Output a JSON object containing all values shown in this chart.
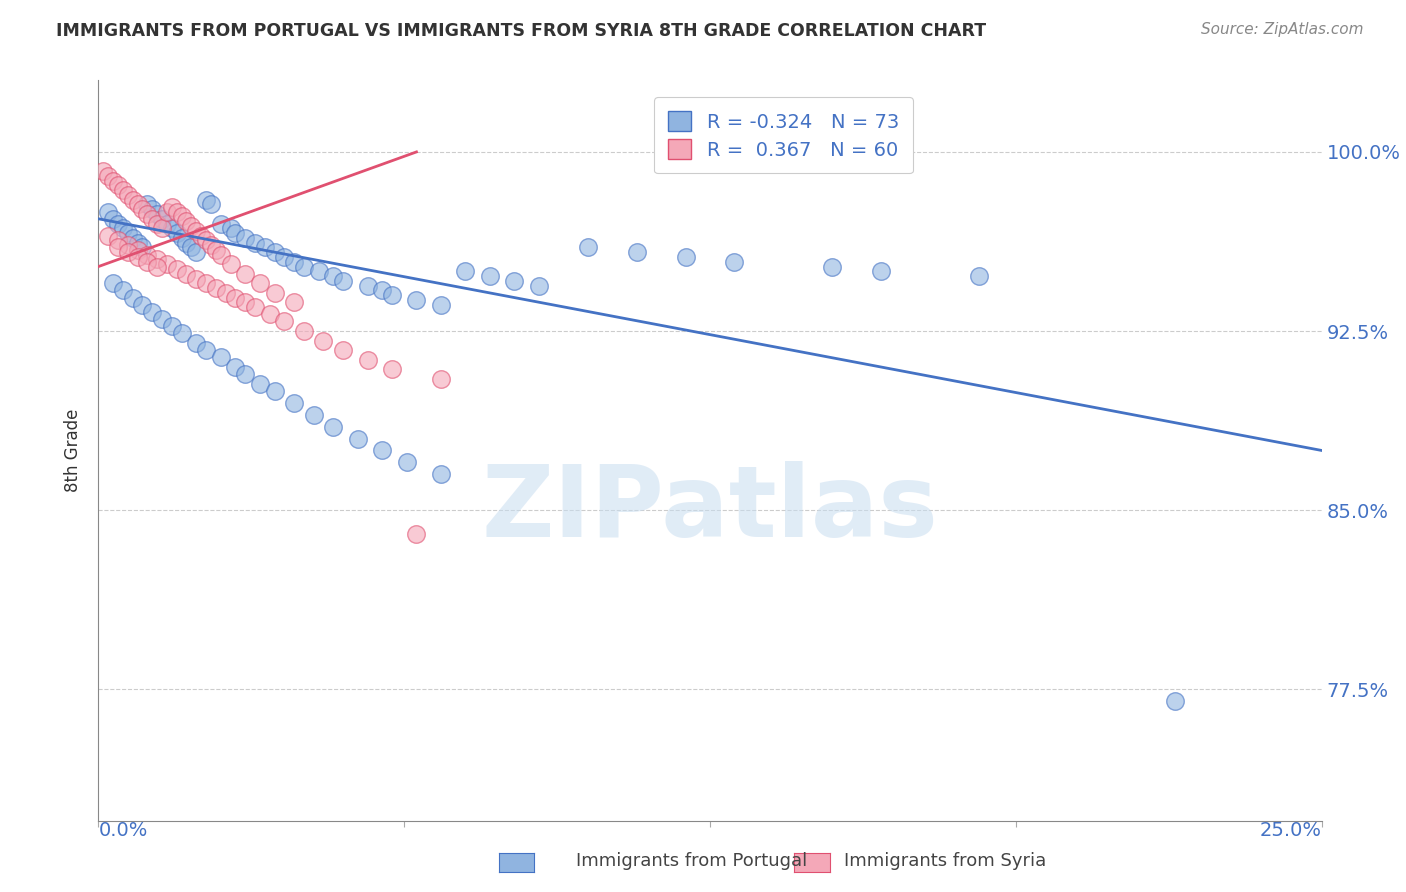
{
  "title": "IMMIGRANTS FROM PORTUGAL VS IMMIGRANTS FROM SYRIA 8TH GRADE CORRELATION CHART",
  "source": "Source: ZipAtlas.com",
  "ylabel": "8th Grade",
  "ytick_labels": [
    "100.0%",
    "92.5%",
    "85.0%",
    "77.5%"
  ],
  "ytick_values": [
    1.0,
    0.925,
    0.85,
    0.775
  ],
  "xlim": [
    0.0,
    0.25
  ],
  "ylim": [
    0.72,
    1.03
  ],
  "blue_color": "#90b4e0",
  "pink_color": "#f4a8b8",
  "blue_edge_color": "#4472c4",
  "pink_edge_color": "#e05070",
  "blue_line_color": "#4472c4",
  "pink_line_color": "#e05070",
  "legend_blue_label_r": "R = -0.324",
  "legend_blue_label_n": "N = 73",
  "legend_pink_label_r": "R =  0.367",
  "legend_pink_label_n": "N = 60",
  "watermark": "ZIPatlas",
  "blue_scatter_x": [
    0.002,
    0.003,
    0.004,
    0.005,
    0.006,
    0.007,
    0.008,
    0.009,
    0.01,
    0.011,
    0.012,
    0.013,
    0.014,
    0.015,
    0.016,
    0.017,
    0.018,
    0.019,
    0.02,
    0.022,
    0.023,
    0.025,
    0.027,
    0.028,
    0.03,
    0.032,
    0.034,
    0.036,
    0.038,
    0.04,
    0.042,
    0.045,
    0.048,
    0.05,
    0.055,
    0.058,
    0.06,
    0.065,
    0.07,
    0.075,
    0.08,
    0.085,
    0.09,
    0.1,
    0.11,
    0.12,
    0.13,
    0.15,
    0.16,
    0.18,
    0.003,
    0.005,
    0.007,
    0.009,
    0.011,
    0.013,
    0.015,
    0.017,
    0.02,
    0.022,
    0.025,
    0.028,
    0.03,
    0.033,
    0.036,
    0.04,
    0.044,
    0.048,
    0.053,
    0.058,
    0.063,
    0.07,
    0.22
  ],
  "blue_scatter_y": [
    0.975,
    0.972,
    0.97,
    0.968,
    0.966,
    0.964,
    0.962,
    0.96,
    0.978,
    0.976,
    0.974,
    0.972,
    0.97,
    0.968,
    0.966,
    0.964,
    0.962,
    0.96,
    0.958,
    0.98,
    0.978,
    0.97,
    0.968,
    0.966,
    0.964,
    0.962,
    0.96,
    0.958,
    0.956,
    0.954,
    0.952,
    0.95,
    0.948,
    0.946,
    0.944,
    0.942,
    0.94,
    0.938,
    0.936,
    0.95,
    0.948,
    0.946,
    0.944,
    0.96,
    0.958,
    0.956,
    0.954,
    0.952,
    0.95,
    0.948,
    0.945,
    0.942,
    0.939,
    0.936,
    0.933,
    0.93,
    0.927,
    0.924,
    0.92,
    0.917,
    0.914,
    0.91,
    0.907,
    0.903,
    0.9,
    0.895,
    0.89,
    0.885,
    0.88,
    0.875,
    0.87,
    0.865,
    0.77
  ],
  "pink_scatter_x": [
    0.001,
    0.002,
    0.003,
    0.004,
    0.005,
    0.006,
    0.007,
    0.008,
    0.009,
    0.01,
    0.011,
    0.012,
    0.013,
    0.014,
    0.015,
    0.016,
    0.017,
    0.018,
    0.019,
    0.02,
    0.021,
    0.022,
    0.023,
    0.024,
    0.025,
    0.027,
    0.03,
    0.033,
    0.036,
    0.04,
    0.002,
    0.004,
    0.006,
    0.008,
    0.01,
    0.012,
    0.014,
    0.016,
    0.018,
    0.02,
    0.022,
    0.024,
    0.026,
    0.028,
    0.03,
    0.032,
    0.035,
    0.038,
    0.042,
    0.046,
    0.05,
    0.055,
    0.06,
    0.07,
    0.004,
    0.006,
    0.008,
    0.01,
    0.012,
    0.065
  ],
  "pink_scatter_y": [
    0.992,
    0.99,
    0.988,
    0.986,
    0.984,
    0.982,
    0.98,
    0.978,
    0.976,
    0.974,
    0.972,
    0.97,
    0.968,
    0.975,
    0.977,
    0.975,
    0.973,
    0.971,
    0.969,
    0.967,
    0.965,
    0.963,
    0.961,
    0.959,
    0.957,
    0.953,
    0.949,
    0.945,
    0.941,
    0.937,
    0.965,
    0.963,
    0.961,
    0.959,
    0.957,
    0.955,
    0.953,
    0.951,
    0.949,
    0.947,
    0.945,
    0.943,
    0.941,
    0.939,
    0.937,
    0.935,
    0.932,
    0.929,
    0.925,
    0.921,
    0.917,
    0.913,
    0.909,
    0.905,
    0.96,
    0.958,
    0.956,
    0.954,
    0.952,
    0.84
  ],
  "blue_trendline_x": [
    0.0,
    0.25
  ],
  "blue_trendline_y": [
    0.972,
    0.875
  ],
  "pink_trendline_x": [
    0.0,
    0.065
  ],
  "pink_trendline_y": [
    0.952,
    1.0
  ]
}
